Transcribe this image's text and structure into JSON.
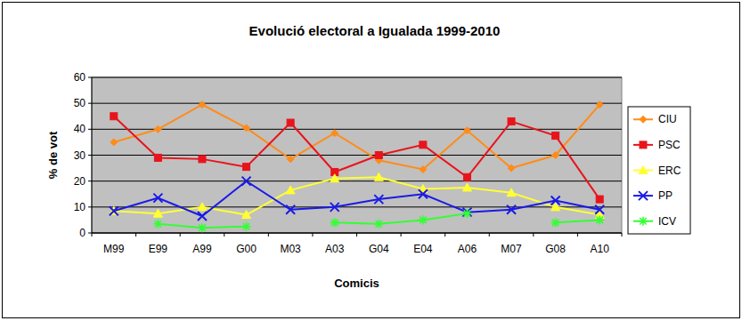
{
  "chart_data": {
    "type": "line",
    "title": "Evolució electoral a Igualada 1999-2010",
    "x_label": "Comicis",
    "y_label": "% de vot",
    "categories": [
      "M99",
      "E99",
      "A99",
      "G00",
      "M03",
      "A03",
      "G04",
      "E04",
      "A06",
      "M07",
      "G08",
      "A10"
    ],
    "ylim": [
      0,
      60
    ],
    "yticks": [
      0,
      10,
      20,
      30,
      40,
      50,
      60
    ],
    "grid": true,
    "legend": "right",
    "series": [
      {
        "name": "CIU",
        "color": "#ff8c1a",
        "marker": "diamond",
        "values": [
          35,
          40,
          49.5,
          40.5,
          28.5,
          38.5,
          28,
          24.5,
          39.5,
          25,
          30,
          49.5
        ]
      },
      {
        "name": "PSC",
        "color": "#e8141c",
        "marker": "square",
        "values": [
          45,
          29,
          28.5,
          25.5,
          42.5,
          23.5,
          30,
          34,
          21.5,
          43,
          37.5,
          13
        ]
      },
      {
        "name": "ERC",
        "color": "#ffff33",
        "marker": "triangle",
        "values": [
          8.5,
          7.5,
          10,
          7,
          16.5,
          21,
          21.5,
          17,
          17.5,
          15.5,
          10,
          7
        ]
      },
      {
        "name": "PP",
        "color": "#1a1ae6",
        "marker": "x",
        "values": [
          8.5,
          13.5,
          6.5,
          20,
          9,
          10,
          13,
          15,
          8,
          9,
          12.5,
          9
        ]
      },
      {
        "name": "ICV",
        "color": "#33ff33",
        "marker": "asterisk",
        "values": [
          null,
          3.5,
          2,
          2.5,
          null,
          4,
          3.5,
          5,
          7.5,
          null,
          4,
          5
        ]
      }
    ]
  }
}
